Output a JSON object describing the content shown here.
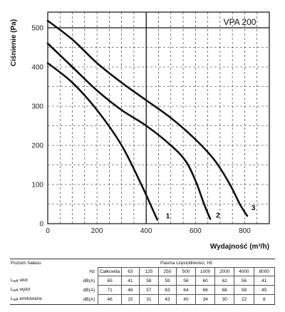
{
  "chart_data": {
    "type": "line",
    "title": "VPA 200",
    "xlabel": "Wydajność (m³/h)",
    "ylabel": "Ciśnienie (Pa)",
    "xlim": [
      0,
      900
    ],
    "ylim": [
      0,
      540
    ],
    "x_ticks": [
      0,
      200,
      400,
      600,
      800
    ],
    "y_ticks": [
      0,
      100,
      200,
      300,
      400,
      500
    ],
    "grid": "dashed",
    "reference_line": {
      "x": 400,
      "style": "solid"
    },
    "series": [
      {
        "name": "1",
        "x": [
          0,
          100,
          200,
          300,
          380,
          420,
          445
        ],
        "y": [
          410,
          360,
          290,
          200,
          100,
          45,
          10
        ]
      },
      {
        "name": "2",
        "x": [
          0,
          100,
          200,
          300,
          400,
          500,
          560,
          600,
          635,
          660
        ],
        "y": [
          460,
          400,
          340,
          290,
          250,
          200,
          160,
          110,
          50,
          12
        ]
      },
      {
        "name": "3",
        "x": [
          0,
          100,
          200,
          300,
          400,
          500,
          600,
          680,
          740,
          780,
          810
        ],
        "y": [
          518,
          470,
          410,
          360,
          315,
          270,
          215,
          160,
          100,
          50,
          20
        ]
      }
    ]
  },
  "table": {
    "header_label": "Poziom hałasu",
    "band_title": "Pasma częstotliwości, Hz",
    "hz_label": "Hz",
    "columns": [
      "Całkowita",
      "63",
      "125",
      "250",
      "500",
      "1000",
      "2000",
      "4000",
      "8000"
    ],
    "rows": [
      {
        "label": "L",
        "sub": "wA",
        "suffix": " wlot",
        "unit": "dB(A)",
        "values": [
          "65",
          "41",
          "58",
          "59",
          "56",
          "60",
          "62",
          "56",
          "41"
        ]
      },
      {
        "label": "L",
        "sub": "wA",
        "suffix": " wylot",
        "unit": "dB(A)",
        "values": [
          "71",
          "46",
          "57",
          "63",
          "64",
          "66",
          "66",
          "58",
          "45"
        ]
      },
      {
        "label": "L",
        "sub": "wA",
        "suffix": " emitowane",
        "unit": "dB(A)",
        "values": [
          "46",
          "15",
          "31",
          "43",
          "40",
          "34",
          "30",
          "22",
          "8"
        ]
      }
    ]
  }
}
